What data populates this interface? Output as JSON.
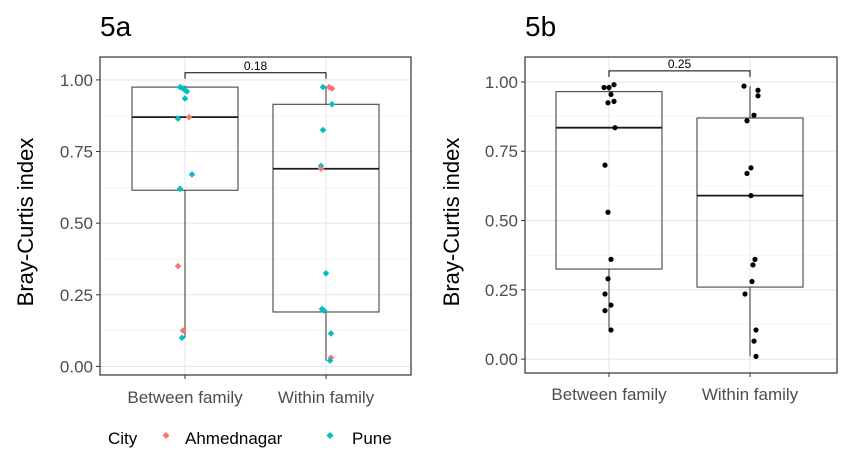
{
  "chart_data": [
    {
      "type": "box",
      "title": "5a",
      "ylabel": "Bray-Curtis index",
      "xlabel": "",
      "ylim": [
        -0.03,
        1.08
      ],
      "yticks": [
        0.0,
        0.25,
        0.5,
        0.75,
        1.0
      ],
      "ytick_labels": [
        "0.00",
        "0.25",
        "0.50",
        "0.75",
        "1.00"
      ],
      "grid": true,
      "categories": [
        "Between family",
        "Within family"
      ],
      "boxes": [
        {
          "category": "Between family",
          "whisker_low": 0.1,
          "q1": 0.615,
          "median": 0.87,
          "q3": 0.975,
          "whisker_high": 0.98
        },
        {
          "category": "Within family",
          "whisker_low": 0.02,
          "q1": 0.19,
          "median": 0.69,
          "q3": 0.915,
          "whisker_high": 0.975
        }
      ],
      "points": [
        {
          "category": "Between family",
          "group": "Pune",
          "y": 0.975,
          "jitter": -0.05
        },
        {
          "category": "Between family",
          "group": "Pune",
          "y": 0.97,
          "jitter": -0.02
        },
        {
          "category": "Between family",
          "group": "Pune",
          "y": 0.965,
          "jitter": 0.0
        },
        {
          "category": "Between family",
          "group": "Pune",
          "y": 0.96,
          "jitter": 0.02
        },
        {
          "category": "Between family",
          "group": "Pune",
          "y": 0.935,
          "jitter": 0.0
        },
        {
          "category": "Between family",
          "group": "Pune",
          "y": 0.865,
          "jitter": -0.07
        },
        {
          "category": "Between family",
          "group": "Ahmednagar",
          "y": 0.87,
          "jitter": 0.04
        },
        {
          "category": "Between family",
          "group": "Pune",
          "y": 0.67,
          "jitter": 0.07
        },
        {
          "category": "Between family",
          "group": "Pune",
          "y": 0.62,
          "jitter": -0.05
        },
        {
          "category": "Between family",
          "group": "Ahmednagar",
          "y": 0.35,
          "jitter": -0.07
        },
        {
          "category": "Between family",
          "group": "Ahmednagar",
          "y": 0.125,
          "jitter": -0.02
        },
        {
          "category": "Between family",
          "group": "Pune",
          "y": 0.1,
          "jitter": -0.03
        },
        {
          "category": "Within family",
          "group": "Pune",
          "y": 0.975,
          "jitter": -0.03
        },
        {
          "category": "Within family",
          "group": "Ahmednagar",
          "y": 0.975,
          "jitter": 0.03
        },
        {
          "category": "Within family",
          "group": "Ahmednagar",
          "y": 0.97,
          "jitter": 0.06
        },
        {
          "category": "Within family",
          "group": "Pune",
          "y": 0.915,
          "jitter": 0.06
        },
        {
          "category": "Within family",
          "group": "Pune",
          "y": 0.825,
          "jitter": -0.03
        },
        {
          "category": "Within family",
          "group": "Pune",
          "y": 0.7,
          "jitter": -0.05
        },
        {
          "category": "Within family",
          "group": "Ahmednagar",
          "y": 0.69,
          "jitter": -0.05
        },
        {
          "category": "Within family",
          "group": "Pune",
          "y": 0.325,
          "jitter": 0.0
        },
        {
          "category": "Within family",
          "group": "Pune",
          "y": 0.2,
          "jitter": -0.04
        },
        {
          "category": "Within family",
          "group": "Pune",
          "y": 0.195,
          "jitter": -0.02
        },
        {
          "category": "Within family",
          "group": "Pune",
          "y": 0.115,
          "jitter": 0.05
        },
        {
          "category": "Within family",
          "group": "Ahmednagar",
          "y": 0.03,
          "jitter": 0.05
        },
        {
          "category": "Within family",
          "group": "Pune",
          "y": 0.02,
          "jitter": 0.04
        }
      ],
      "comparison": {
        "from": "Between family",
        "to": "Within family",
        "label": "0.18",
        "y": 1.025
      }
    },
    {
      "type": "box",
      "title": "5b",
      "ylabel": "Bray-Curtis index",
      "xlabel": "",
      "ylim": [
        -0.05,
        1.09
      ],
      "yticks": [
        0.0,
        0.25,
        0.5,
        0.75,
        1.0
      ],
      "ytick_labels": [
        "0.00",
        "0.25",
        "0.50",
        "0.75",
        "1.00"
      ],
      "grid": true,
      "categories": [
        "Between family",
        "Within family"
      ],
      "boxes": [
        {
          "category": "Between family",
          "whisker_low": 0.1,
          "q1": 0.325,
          "median": 0.835,
          "q3": 0.965,
          "whisker_high": 0.99
        },
        {
          "category": "Within family",
          "whisker_low": 0.01,
          "q1": 0.26,
          "median": 0.59,
          "q3": 0.87,
          "whisker_high": 0.985
        }
      ],
      "points": [
        {
          "category": "Between family",
          "group": "",
          "y": 0.99,
          "jitter": 0.05
        },
        {
          "category": "Between family",
          "group": "",
          "y": 0.98,
          "jitter": -0.05
        },
        {
          "category": "Between family",
          "group": "",
          "y": 0.98,
          "jitter": 0.0
        },
        {
          "category": "Between family",
          "group": "",
          "y": 0.955,
          "jitter": 0.02
        },
        {
          "category": "Between family",
          "group": "",
          "y": 0.93,
          "jitter": 0.05
        },
        {
          "category": "Between family",
          "group": "",
          "y": 0.925,
          "jitter": -0.01
        },
        {
          "category": "Between family",
          "group": "",
          "y": 0.835,
          "jitter": 0.06
        },
        {
          "category": "Between family",
          "group": "",
          "y": 0.7,
          "jitter": -0.04
        },
        {
          "category": "Between family",
          "group": "",
          "y": 0.53,
          "jitter": -0.01
        },
        {
          "category": "Between family",
          "group": "",
          "y": 0.36,
          "jitter": 0.02
        },
        {
          "category": "Between family",
          "group": "",
          "y": 0.29,
          "jitter": -0.01
        },
        {
          "category": "Between family",
          "group": "",
          "y": 0.235,
          "jitter": -0.04
        },
        {
          "category": "Between family",
          "group": "",
          "y": 0.195,
          "jitter": 0.02
        },
        {
          "category": "Between family",
          "group": "",
          "y": 0.175,
          "jitter": -0.04
        },
        {
          "category": "Between family",
          "group": "",
          "y": 0.105,
          "jitter": 0.02
        },
        {
          "category": "Within family",
          "group": "",
          "y": 0.985,
          "jitter": -0.06
        },
        {
          "category": "Within family",
          "group": "",
          "y": 0.97,
          "jitter": 0.08
        },
        {
          "category": "Within family",
          "group": "",
          "y": 0.95,
          "jitter": 0.08
        },
        {
          "category": "Within family",
          "group": "",
          "y": 0.88,
          "jitter": 0.04
        },
        {
          "category": "Within family",
          "group": "",
          "y": 0.86,
          "jitter": -0.03
        },
        {
          "category": "Within family",
          "group": "",
          "y": 0.69,
          "jitter": 0.01
        },
        {
          "category": "Within family",
          "group": "",
          "y": 0.67,
          "jitter": -0.03
        },
        {
          "category": "Within family",
          "group": "",
          "y": 0.59,
          "jitter": 0.01
        },
        {
          "category": "Within family",
          "group": "",
          "y": 0.36,
          "jitter": 0.05
        },
        {
          "category": "Within family",
          "group": "",
          "y": 0.34,
          "jitter": 0.03
        },
        {
          "category": "Within family",
          "group": "",
          "y": 0.28,
          "jitter": 0.02
        },
        {
          "category": "Within family",
          "group": "",
          "y": 0.235,
          "jitter": -0.05
        },
        {
          "category": "Within family",
          "group": "",
          "y": 0.105,
          "jitter": 0.06
        },
        {
          "category": "Within family",
          "group": "",
          "y": 0.065,
          "jitter": 0.04
        },
        {
          "category": "Within family",
          "group": "",
          "y": 0.01,
          "jitter": 0.06
        }
      ],
      "comparison": {
        "from": "Between family",
        "to": "Within family",
        "label": "0.25",
        "y": 1.04
      }
    }
  ],
  "legend": {
    "title": "City",
    "position": "bottom-left",
    "items": [
      {
        "label": "Ahmednagar",
        "color": "#F8766D"
      },
      {
        "label": "Pune",
        "color": "#00BFC4"
      }
    ]
  },
  "colors": {
    "Ahmednagar": "#F8766D",
    "Pune": "#00BFC4",
    "default_point": "#000000",
    "grid": "#ebebeb",
    "panel_border": "#333333",
    "box_line": "#333333"
  }
}
